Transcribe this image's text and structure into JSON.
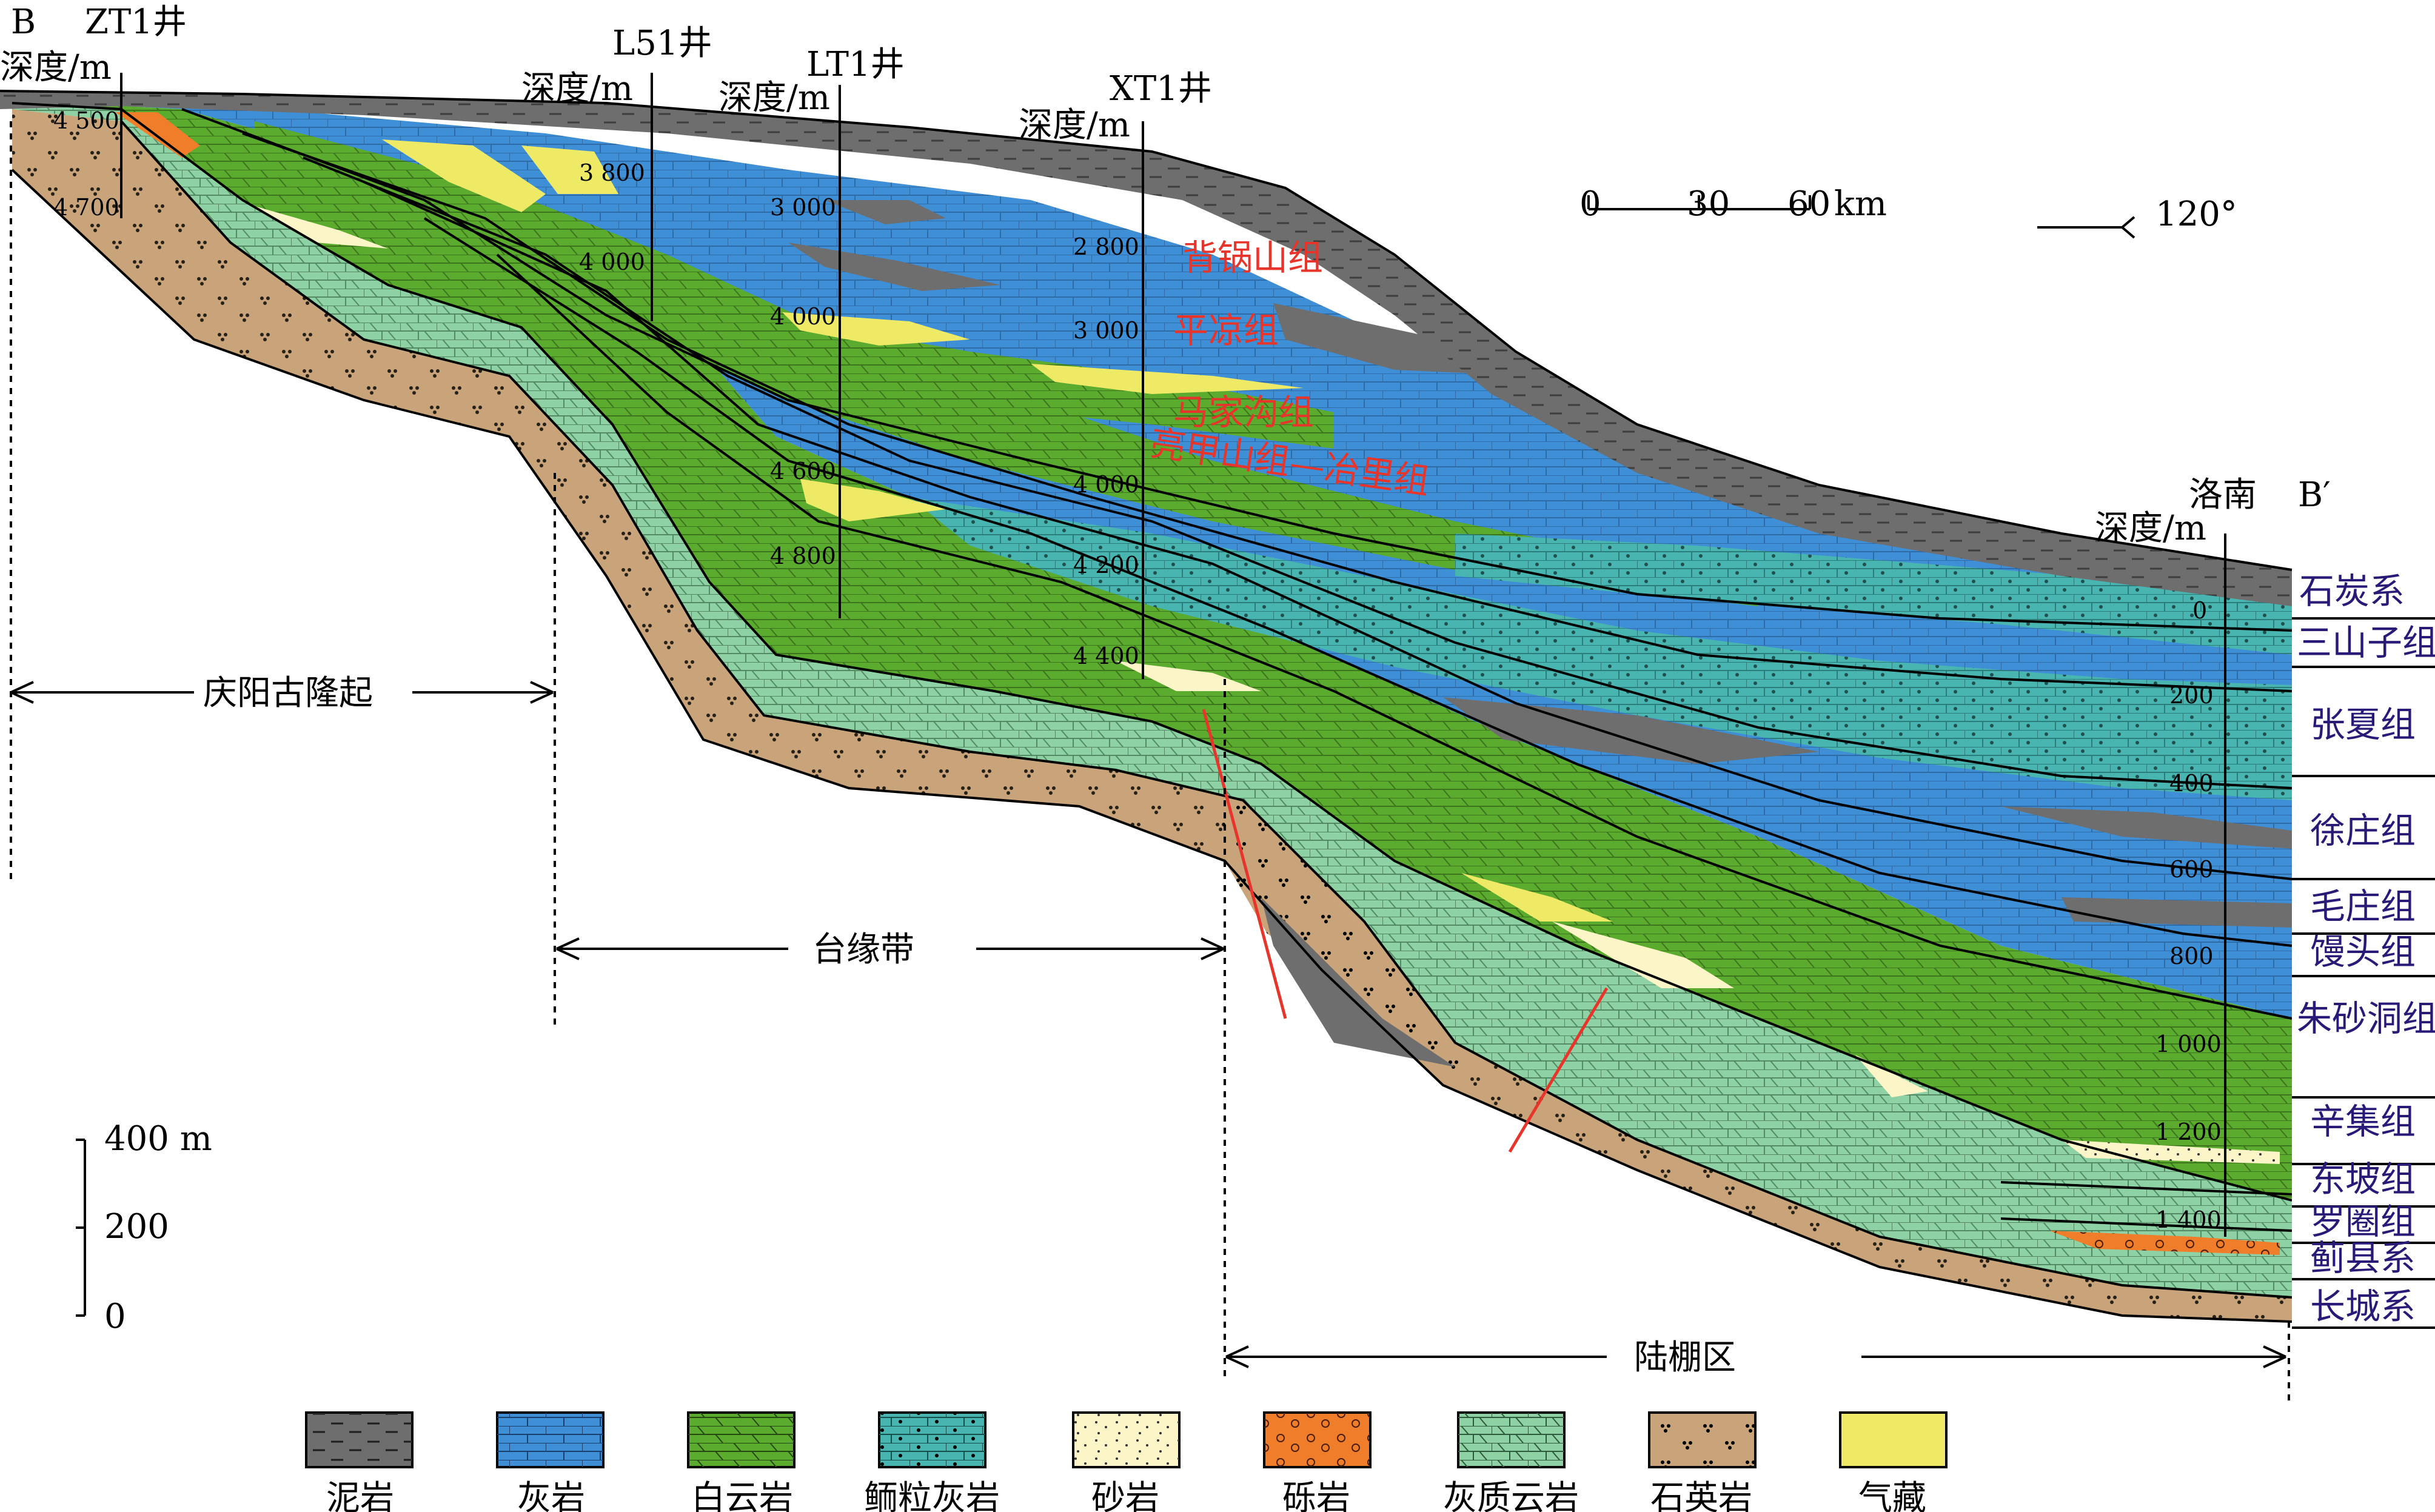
{
  "section_ends": {
    "left": "B",
    "right": "B′"
  },
  "wells": [
    {
      "name": "ZT1井",
      "depth_header": "深度/m",
      "depth_ticks": [
        "4 500",
        "4 700"
      ]
    },
    {
      "name": "L51井",
      "depth_header": "深度/m",
      "depth_ticks": [
        "3 800",
        "4 000"
      ]
    },
    {
      "name": "LT1井",
      "depth_header": "深度/m",
      "depth_ticks": [
        "3 000",
        "4 000",
        "4 600",
        "4 800"
      ]
    },
    {
      "name": "XT1井",
      "depth_header": "深度/m",
      "depth_ticks": [
        "2 800",
        "3 000",
        "4 000",
        "4 200",
        "4 400"
      ]
    },
    {
      "name": "洛南",
      "depth_header": "深度/m",
      "depth_ticks": [
        "0",
        "200",
        "400",
        "600",
        "800",
        "1 000",
        "1 200",
        "1 400"
      ]
    }
  ],
  "scale_bar": {
    "ticks": [
      "0",
      "30",
      "60"
    ],
    "unit": "km"
  },
  "orientation": "120°",
  "vertical_scale": {
    "ticks": [
      "400 m",
      "200",
      "0"
    ]
  },
  "inline_formations": [
    "背锅山组",
    "平凉组",
    "马家沟组",
    "亮甲山组—冶里组"
  ],
  "column_formations": [
    "石炭系",
    "三山子组",
    "张夏组",
    "徐庄组",
    "毛庄组",
    "馒头组",
    "朱砂洞组",
    "辛集组",
    "东坡组",
    "罗圈组",
    "蓟县系",
    "长城系"
  ],
  "zones": [
    "庆阳古隆起",
    "台缘带",
    "陆棚区"
  ],
  "legend": [
    {
      "label": "泥岩",
      "color": "#6e6e6e",
      "icon": "mudstone-swatch"
    },
    {
      "label": "灰岩",
      "color": "#3f8fd6",
      "icon": "limestone-swatch"
    },
    {
      "label": "白云岩",
      "color": "#5aab2e",
      "icon": "dolomite-swatch"
    },
    {
      "label": "鲕粒灰岩",
      "color": "#48b5b0",
      "icon": "oolitic-limestone-swatch"
    },
    {
      "label": "砂岩",
      "color": "#fbf5c8",
      "icon": "sandstone-swatch"
    },
    {
      "label": "砾岩",
      "color": "#f07d2a",
      "icon": "conglomerate-swatch"
    },
    {
      "label": "灰质云岩",
      "color": "#8ed1a4",
      "icon": "calcareous-dolomite-swatch"
    },
    {
      "label": "石英岩",
      "color": "#c9a47b",
      "icon": "quartzite-swatch"
    },
    {
      "label": "气藏",
      "color": "#eeea66",
      "icon": "gas-reservoir-swatch"
    }
  ]
}
